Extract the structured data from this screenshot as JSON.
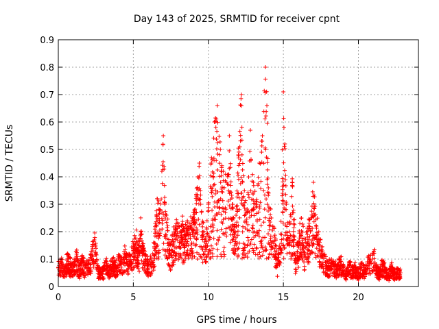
{
  "chart_data": {
    "type": "scatter",
    "title": "Day 143 of 2025, SRMTID for receiver cpnt",
    "xlabel": "GPS time / hours",
    "ylabel": "SRMTID / TECUs",
    "xlim": [
      0,
      24
    ],
    "ylim": [
      0,
      0.9
    ],
    "xticks": [
      0,
      5,
      10,
      15,
      20
    ],
    "xtick_labels": [
      "0",
      "5",
      "10",
      "15",
      "20"
    ],
    "yticks": [
      0,
      0.1,
      0.2,
      0.3,
      0.4,
      0.5,
      0.6,
      0.7,
      0.8,
      0.9
    ],
    "ytick_labels": [
      "0",
      "0.1",
      "0.2",
      "0.3",
      "0.4",
      "0.5",
      "0.6",
      "0.7",
      "0.8",
      "0.9"
    ],
    "grid": true,
    "marker": "+",
    "color": "#ff0000",
    "x_data_range": [
      0,
      22.8
    ],
    "series": [
      {
        "name": "SRMTID",
        "points": [
          [
            0.0,
            0.07
          ],
          [
            0.2,
            0.09
          ],
          [
            0.4,
            0.06
          ],
          [
            0.6,
            0.1
          ],
          [
            0.8,
            0.08
          ],
          [
            1.0,
            0.07
          ],
          [
            1.2,
            0.11
          ],
          [
            1.4,
            0.06
          ],
          [
            1.6,
            0.09
          ],
          [
            1.8,
            0.07
          ],
          [
            2.0,
            0.08
          ],
          [
            2.2,
            0.1
          ],
          [
            2.3,
            0.13
          ],
          [
            2.4,
            0.17
          ],
          [
            2.6,
            0.07
          ],
          [
            2.8,
            0.05
          ],
          [
            3.0,
            0.06
          ],
          [
            3.2,
            0.08
          ],
          [
            3.4,
            0.06
          ],
          [
            3.6,
            0.09
          ],
          [
            3.8,
            0.07
          ],
          [
            4.0,
            0.1
          ],
          [
            4.2,
            0.08
          ],
          [
            4.4,
            0.12
          ],
          [
            4.6,
            0.09
          ],
          [
            4.8,
            0.11
          ],
          [
            5.0,
            0.13
          ],
          [
            5.2,
            0.16
          ],
          [
            5.4,
            0.12
          ],
          [
            5.5,
            0.2
          ],
          [
            5.6,
            0.15
          ],
          [
            5.8,
            0.1
          ],
          [
            6.0,
            0.08
          ],
          [
            6.2,
            0.09
          ],
          [
            6.4,
            0.14
          ],
          [
            6.6,
            0.32
          ],
          [
            6.8,
            0.28
          ],
          [
            6.9,
            0.42
          ],
          [
            7.0,
            0.55
          ],
          [
            7.1,
            0.3
          ],
          [
            7.2,
            0.26
          ],
          [
            7.4,
            0.12
          ],
          [
            7.6,
            0.15
          ],
          [
            7.8,
            0.2
          ],
          [
            8.0,
            0.18
          ],
          [
            8.2,
            0.22
          ],
          [
            8.4,
            0.16
          ],
          [
            8.6,
            0.24
          ],
          [
            8.8,
            0.19
          ],
          [
            9.0,
            0.27
          ],
          [
            9.2,
            0.33
          ],
          [
            9.3,
            0.4
          ],
          [
            9.4,
            0.45
          ],
          [
            9.6,
            0.2
          ],
          [
            9.8,
            0.15
          ],
          [
            10.0,
            0.3
          ],
          [
            10.2,
            0.45
          ],
          [
            10.4,
            0.6
          ],
          [
            10.6,
            0.66
          ],
          [
            10.8,
            0.5
          ],
          [
            11.0,
            0.42
          ],
          [
            11.2,
            0.38
          ],
          [
            11.4,
            0.55
          ],
          [
            11.6,
            0.3
          ],
          [
            11.8,
            0.2
          ],
          [
            12.0,
            0.48
          ],
          [
            12.2,
            0.7
          ],
          [
            12.4,
            0.35
          ],
          [
            12.6,
            0.27
          ],
          [
            12.8,
            0.57
          ],
          [
            13.0,
            0.38
          ],
          [
            13.2,
            0.31
          ],
          [
            13.4,
            0.45
          ],
          [
            13.6,
            0.55
          ],
          [
            13.8,
            0.8
          ],
          [
            13.9,
            0.66
          ],
          [
            14.0,
            0.36
          ],
          [
            14.2,
            0.25
          ],
          [
            14.4,
            0.18
          ],
          [
            14.6,
            0.08
          ],
          [
            14.8,
            0.14
          ],
          [
            15.0,
            0.71
          ],
          [
            15.1,
            0.52
          ],
          [
            15.2,
            0.3
          ],
          [
            15.4,
            0.2
          ],
          [
            15.6,
            0.38
          ],
          [
            15.8,
            0.1
          ],
          [
            16.0,
            0.15
          ],
          [
            16.2,
            0.25
          ],
          [
            16.4,
            0.12
          ],
          [
            16.6,
            0.18
          ],
          [
            16.8,
            0.2
          ],
          [
            17.0,
            0.38
          ],
          [
            17.2,
            0.22
          ],
          [
            17.4,
            0.15
          ],
          [
            17.6,
            0.12
          ],
          [
            17.8,
            0.09
          ],
          [
            18.0,
            0.07
          ],
          [
            18.2,
            0.1
          ],
          [
            18.4,
            0.08
          ],
          [
            18.6,
            0.06
          ],
          [
            18.8,
            0.09
          ],
          [
            19.0,
            0.07
          ],
          [
            19.2,
            0.05
          ],
          [
            19.4,
            0.08
          ],
          [
            19.6,
            0.06
          ],
          [
            19.8,
            0.07
          ],
          [
            20.0,
            0.05
          ],
          [
            20.2,
            0.08
          ],
          [
            20.4,
            0.06
          ],
          [
            20.6,
            0.09
          ],
          [
            20.8,
            0.1
          ],
          [
            21.0,
            0.12
          ],
          [
            21.2,
            0.07
          ],
          [
            21.4,
            0.05
          ],
          [
            21.6,
            0.08
          ],
          [
            21.8,
            0.06
          ],
          [
            22.0,
            0.04
          ],
          [
            22.2,
            0.07
          ],
          [
            22.4,
            0.05
          ],
          [
            22.6,
            0.06
          ],
          [
            22.8,
            0.05
          ]
        ]
      }
    ]
  }
}
